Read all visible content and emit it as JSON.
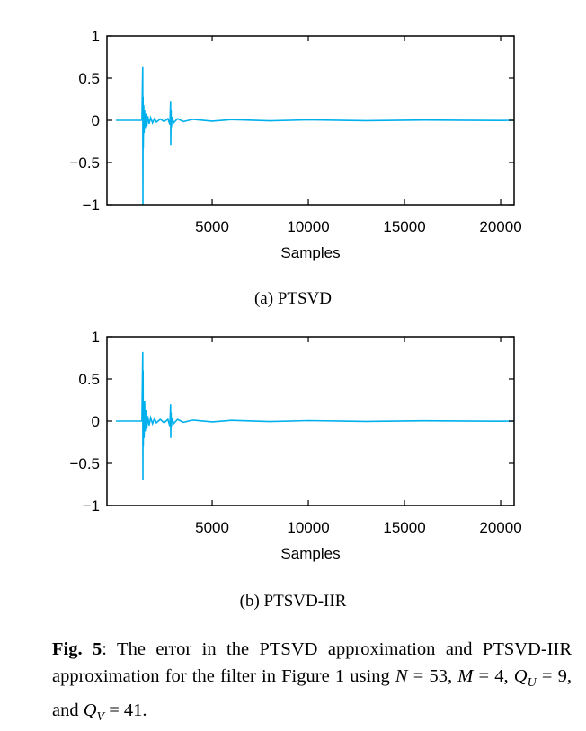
{
  "chart_data": [
    {
      "type": "line",
      "xlabel": "Samples",
      "ylabel": "",
      "xlim": [
        -470,
        20700
      ],
      "ylim": [
        -1,
        1
      ],
      "xticks": [
        5000,
        10000,
        15000,
        20000
      ],
      "yticks": [
        1,
        0.5,
        0,
        -0.5,
        -1
      ],
      "ytick_labels": [
        "1",
        "0.5",
        "0",
        "−0.5",
        "−1"
      ],
      "grid": false,
      "color": "#00b0ec",
      "x": [
        0,
        1350,
        1390,
        1400,
        1410,
        1420,
        1440,
        1460,
        1490,
        1520,
        1560,
        1600,
        1650,
        1720,
        1800,
        1900,
        2000,
        2100,
        2300,
        2500,
        2700,
        2800,
        2840,
        2850,
        2860,
        2880,
        2920,
        3000,
        3200,
        3500,
        4000,
        5000,
        6000,
        8000,
        10000,
        13000,
        16000,
        20000,
        20700
      ],
      "y": [
        0,
        0,
        0.63,
        -1,
        0.28,
        -0.33,
        0.18,
        -0.15,
        0.12,
        -0.1,
        0.08,
        -0.07,
        0.05,
        -0.04,
        0.03,
        -0.03,
        0.02,
        -0.02,
        0.015,
        -0.015,
        0.02,
        -0.05,
        0.22,
        -0.3,
        0.12,
        -0.08,
        0.04,
        -0.03,
        0.02,
        -0.015,
        0.012,
        -0.01,
        0.008,
        -0.006,
        0.005,
        -0.004,
        0.003,
        -0.002,
        0
      ]
    },
    {
      "type": "line",
      "xlabel": "Samples",
      "ylabel": "",
      "xlim": [
        -470,
        20700
      ],
      "ylim": [
        -1,
        1
      ],
      "xticks": [
        5000,
        10000,
        15000,
        20000
      ],
      "yticks": [
        1,
        0.5,
        0,
        -0.5,
        -1
      ],
      "ytick_labels": [
        "1",
        "0.5",
        "0",
        "−0.5",
        "−1"
      ],
      "grid": false,
      "color": "#00b0ec",
      "x": [
        0,
        1350,
        1390,
        1400,
        1410,
        1420,
        1440,
        1460,
        1490,
        1520,
        1560,
        1600,
        1650,
        1720,
        1800,
        1900,
        2000,
        2100,
        2300,
        2500,
        2700,
        2800,
        2840,
        2850,
        2860,
        2880,
        2920,
        3000,
        3200,
        3500,
        4000,
        5000,
        6000,
        8000,
        10000,
        13000,
        16000,
        20000,
        20700
      ],
      "y": [
        0,
        0,
        0.82,
        -0.7,
        0.6,
        -0.3,
        0.24,
        -0.2,
        0.24,
        -0.12,
        0.13,
        -0.09,
        0.06,
        -0.05,
        0.04,
        -0.03,
        0.03,
        -0.02,
        0.02,
        -0.02,
        0.02,
        -0.06,
        0.2,
        -0.2,
        0.1,
        -0.06,
        0.04,
        -0.03,
        0.02,
        -0.015,
        0.012,
        -0.01,
        0.008,
        -0.006,
        0.005,
        -0.004,
        0.003,
        -0.002,
        0
      ]
    }
  ],
  "subcaptions": [
    "(a) PTSVD",
    "(b) PTSVD-IIR"
  ],
  "caption": {
    "label": "Fig. 5",
    "text1": ": The error in the PTSVD approximation and PTSVD-IIR approximation for the filter in Figure 1 using ",
    "N": "N",
    "eq_N": " = 53,",
    "M": "M",
    "eq_M": " = 4, ",
    "QU": "Q",
    "QU_sub": "U",
    "eq_QU": " = 9, and ",
    "QV": "Q",
    "QV_sub": "V",
    "eq_QV": " = 41."
  }
}
